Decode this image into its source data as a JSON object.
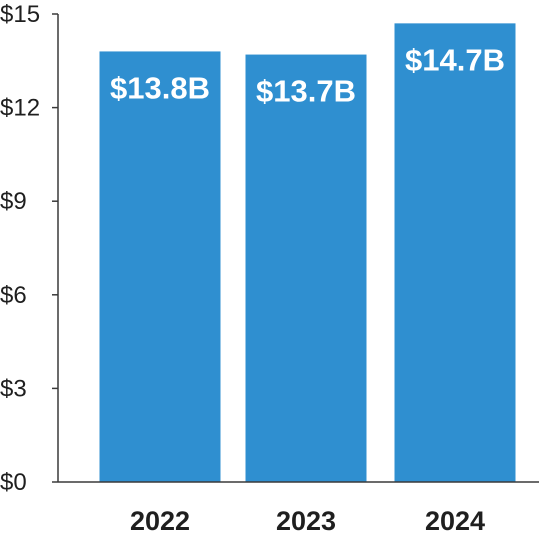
{
  "chart_data": {
    "type": "bar",
    "categories": [
      "2022",
      "2023",
      "2024"
    ],
    "values": [
      13.8,
      13.7,
      14.7
    ],
    "data_labels": [
      "$13.8B",
      "$13.7B",
      "$14.7B"
    ],
    "title": "",
    "xlabel": "",
    "ylabel": "",
    "ylim": [
      0,
      15
    ],
    "y_ticks": [
      0,
      3,
      6,
      9,
      12,
      15
    ],
    "y_tick_labels": [
      "$0",
      "$3",
      "$6",
      "$9",
      "$12",
      "$15"
    ],
    "grid": false,
    "legend": "none",
    "colors": {
      "bar": "#2F8FD0",
      "axis": "#3a3a3a",
      "text": "#1f1f1f",
      "data_label": "#ffffff"
    }
  }
}
